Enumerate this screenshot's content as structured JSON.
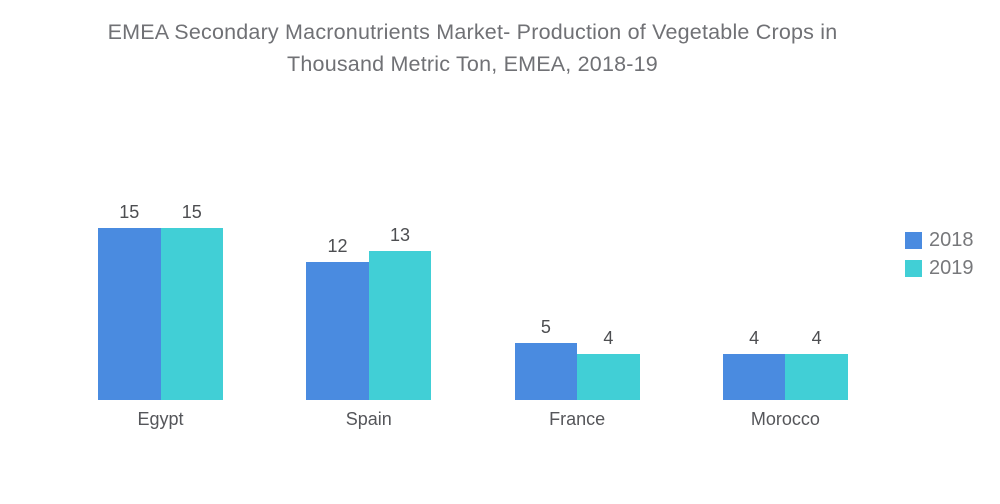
{
  "title": {
    "line1": "EMEA Secondary Macronutrients Market- Production of Vegetable Crops in",
    "line2": "Thousand Metric Ton, EMEA, 2018-19"
  },
  "legend": {
    "items": [
      {
        "label": "2018",
        "color": "#4a8be0"
      },
      {
        "label": "2019",
        "color": "#41cfd6"
      }
    ]
  },
  "colors": {
    "background": "#ffffff",
    "title_text": "#707175",
    "value_label_text": "#4d4e51",
    "category_label_text": "#55565a",
    "legend_text": "#77787b",
    "series_2018": "#4a8be0",
    "series_2019": "#41cfd6"
  },
  "chart_data": {
    "type": "bar",
    "title": "EMEA Secondary Macronutrients Market- Production of Vegetable Crops in Thousand Metric Ton, EMEA, 2018-19",
    "categories": [
      "Egypt",
      "Spain",
      "France",
      "Morocco"
    ],
    "series": [
      {
        "name": "2018",
        "values": [
          15,
          12,
          5,
          4
        ]
      },
      {
        "name": "2019",
        "values": [
          15,
          13,
          4,
          4
        ]
      }
    ],
    "xlabel": "",
    "ylabel": "",
    "unit": "Thousand Metric Ton",
    "ylim": [
      0,
      15
    ],
    "grid": false,
    "axes_visible": false,
    "data_labels": true,
    "legend_position": "right"
  }
}
